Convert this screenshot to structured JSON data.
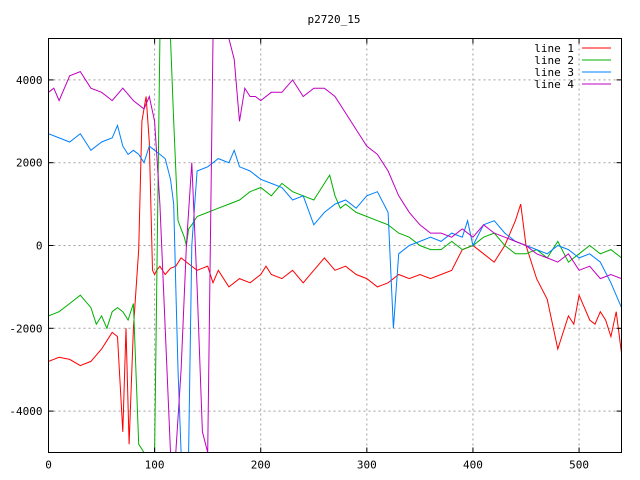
{
  "chart_data": {
    "type": "line",
    "title": "p2720_15",
    "xlabel": "",
    "ylabel": "",
    "xlim": [
      0,
      540
    ],
    "ylim": [
      -5000,
      5000
    ],
    "xticks": [
      0,
      100,
      200,
      300,
      400,
      500
    ],
    "yticks": [
      -4000,
      -2000,
      0,
      2000,
      4000
    ],
    "xtick_labels": [
      "0",
      "100",
      "200",
      "300",
      "400",
      "500"
    ],
    "ytick_labels": [
      "-4000",
      "-2000",
      "0",
      "2000",
      "4000"
    ],
    "grid": true,
    "legend_position": "top-right",
    "series": [
      {
        "name": "line 1",
        "color": "#ff0000",
        "x": [
          0,
          10,
          20,
          30,
          40,
          50,
          55,
          60,
          65,
          70,
          73,
          76,
          80,
          85,
          88,
          92,
          95,
          98,
          100,
          102,
          105,
          110,
          115,
          120,
          125,
          130,
          140,
          150,
          155,
          160,
          170,
          180,
          190,
          200,
          205,
          210,
          220,
          230,
          240,
          250,
          260,
          270,
          280,
          290,
          300,
          310,
          320,
          330,
          340,
          350,
          360,
          370,
          380,
          390,
          400,
          410,
          420,
          430,
          440,
          445,
          450,
          460,
          470,
          480,
          490,
          495,
          500,
          505,
          510,
          515,
          520,
          525,
          530,
          535,
          540
        ],
        "y": [
          -2800,
          -2700,
          -2750,
          -2900,
          -2800,
          -2500,
          -2300,
          -2100,
          -2200,
          -4500,
          -2000,
          -4800,
          -2000,
          -100,
          3000,
          3600,
          2500,
          -600,
          -700,
          -600,
          -500,
          -700,
          -550,
          -500,
          -300,
          -400,
          -600,
          -500,
          -900,
          -600,
          -1000,
          -800,
          -900,
          -700,
          -500,
          -700,
          -800,
          -600,
          -900,
          -600,
          -300,
          -600,
          -500,
          -700,
          -800,
          -1000,
          -900,
          -700,
          -800,
          -700,
          -800,
          -700,
          -600,
          -100,
          0,
          -200,
          -400,
          0,
          600,
          1000,
          0,
          -800,
          -1300,
          -2500,
          -1700,
          -1900,
          -1200,
          -1500,
          -1800,
          -1900,
          -1600,
          -1800,
          -2200,
          -1600,
          -2600
        ]
      },
      {
        "name": "line 2",
        "color": "#00b000",
        "x": [
          0,
          10,
          20,
          30,
          40,
          45,
          50,
          55,
          60,
          65,
          70,
          75,
          80,
          85,
          90,
          95,
          100,
          105,
          108,
          110,
          115,
          118,
          122,
          125,
          128,
          130,
          132,
          135,
          140,
          150,
          160,
          170,
          180,
          190,
          200,
          210,
          220,
          230,
          240,
          250,
          260,
          265,
          270,
          275,
          280,
          290,
          300,
          310,
          320,
          330,
          340,
          350,
          360,
          370,
          380,
          390,
          400,
          410,
          420,
          430,
          440,
          450,
          460,
          470,
          480,
          490,
          500,
          510,
          520,
          530,
          540
        ],
        "y": [
          -1700,
          -1600,
          -1400,
          -1200,
          -1500,
          -1900,
          -1700,
          -2000,
          -1600,
          -1500,
          -1600,
          -1800,
          -1400,
          -4800,
          -5000,
          -5000,
          -5000,
          5000,
          5000,
          5000,
          5000,
          3000,
          600,
          400,
          200,
          0,
          400,
          500,
          700,
          800,
          900,
          1000,
          1100,
          1300,
          1400,
          1200,
          1500,
          1300,
          1200,
          1100,
          1500,
          1700,
          1200,
          900,
          1000,
          800,
          700,
          600,
          500,
          300,
          200,
          0,
          -100,
          -100,
          100,
          -100,
          0,
          200,
          300,
          0,
          -200,
          -200,
          -100,
          -300,
          100,
          -400,
          -200,
          0,
          -200,
          -100,
          -300
        ]
      },
      {
        "name": "line 3",
        "color": "#0080ff",
        "x": [
          0,
          10,
          20,
          30,
          40,
          50,
          60,
          65,
          70,
          75,
          80,
          85,
          90,
          95,
          100,
          105,
          110,
          115,
          118,
          120,
          122,
          125,
          128,
          132,
          135,
          140,
          150,
          160,
          170,
          175,
          180,
          190,
          200,
          210,
          220,
          230,
          240,
          250,
          260,
          270,
          280,
          290,
          300,
          310,
          320,
          325,
          330,
          340,
          350,
          360,
          370,
          380,
          390,
          395,
          400,
          410,
          420,
          430,
          440,
          450,
          460,
          470,
          480,
          490,
          500,
          510,
          520,
          530,
          540
        ],
        "y": [
          2700,
          2600,
          2500,
          2700,
          2300,
          2500,
          2600,
          2900,
          2400,
          2200,
          2300,
          2200,
          2000,
          2400,
          2300,
          2200,
          2100,
          1600,
          1000,
          -1000,
          -3000,
          -5000,
          -5000,
          -5000,
          0,
          1800,
          1900,
          2100,
          2000,
          2300,
          1900,
          1800,
          1600,
          1500,
          1400,
          1100,
          1200,
          500,
          800,
          1000,
          1100,
          900,
          1200,
          1300,
          800,
          -2000,
          -200,
          0,
          100,
          200,
          100,
          300,
          200,
          600,
          0,
          500,
          600,
          300,
          100,
          0,
          -100,
          -200,
          0,
          -100,
          -300,
          -200,
          -400,
          -900,
          -1500
        ]
      },
      {
        "name": "line 4",
        "color": "#c000c0",
        "x": [
          0,
          5,
          10,
          20,
          30,
          40,
          50,
          60,
          70,
          80,
          90,
          95,
          100,
          105,
          110,
          115,
          120,
          125,
          130,
          135,
          140,
          145,
          150,
          155,
          160,
          165,
          170,
          175,
          180,
          185,
          190,
          195,
          200,
          210,
          220,
          230,
          240,
          250,
          260,
          270,
          280,
          290,
          300,
          310,
          320,
          330,
          340,
          350,
          360,
          370,
          380,
          390,
          400,
          410,
          420,
          430,
          440,
          450,
          460,
          470,
          480,
          490,
          500,
          510,
          520,
          530,
          540
        ],
        "y": [
          3700,
          3800,
          3500,
          4100,
          4200,
          3800,
          3700,
          3500,
          3800,
          3500,
          3300,
          3600,
          3000,
          1000,
          -2000,
          -5000,
          -5000,
          -3000,
          0,
          2000,
          -1000,
          -4500,
          -5000,
          5000,
          5000,
          5000,
          5000,
          4500,
          3000,
          3800,
          3600,
          3600,
          3500,
          3700,
          3700,
          4000,
          3600,
          3800,
          3800,
          3600,
          3200,
          2800,
          2400,
          2200,
          1800,
          1200,
          800,
          500,
          300,
          300,
          200,
          400,
          200,
          500,
          300,
          200,
          100,
          0,
          -200,
          -300,
          -400,
          -200,
          -600,
          -500,
          -800,
          -700,
          -800
        ]
      }
    ]
  }
}
